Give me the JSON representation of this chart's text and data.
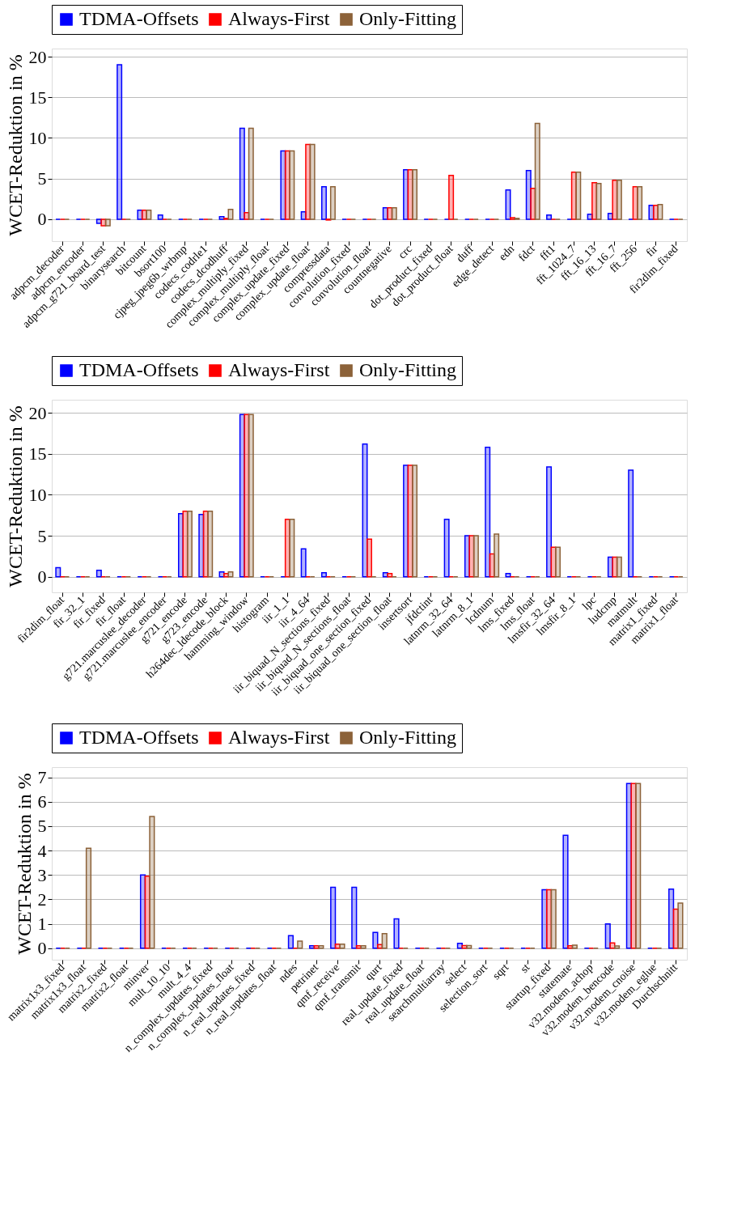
{
  "chart_data": [
    {
      "type": "bar",
      "ylabel": "WCET-Reduktion in %",
      "legend": "top",
      "grid": "y",
      "ylim": [
        -2.7,
        21
      ],
      "yticks": [
        0,
        5,
        10,
        15,
        20
      ],
      "categories": [
        "adpcm_decoder",
        "adpcm_encoder",
        "adpcm_g721_board_test",
        "binarysearch",
        "bitcount",
        "bsort100",
        "cjpeg_jpeg6b_wrbmp",
        "codecs_codrle1",
        "codecs_dcodhuff",
        "complex_multiply_fixed",
        "complex_multiply_float",
        "complex_update_fixed",
        "complex_update_float",
        "compressdata",
        "convolution_fixed",
        "convolution_float",
        "countnegative",
        "crc",
        "dot_product_fixed",
        "dot_product_float",
        "duff",
        "edge_detect",
        "edn",
        "fdct",
        "fft1",
        "fft_1024_7",
        "fft_16_13",
        "fft_16_7",
        "fft_256",
        "fir",
        "fir2dim_fixed"
      ],
      "series": [
        {
          "name": "TDMA-Offsets",
          "color": "#0000ff",
          "values": [
            0,
            0,
            -0.5,
            19,
            1.1,
            0.5,
            0,
            0,
            0.3,
            11.2,
            0,
            8.4,
            0.9,
            4.0,
            0,
            0,
            1.4,
            6.1,
            0,
            0,
            0,
            0,
            3.6,
            6.0,
            0.5,
            0,
            0.6,
            0.7,
            0,
            1.7,
            0
          ]
        },
        {
          "name": "Always-First",
          "color": "#ff0000",
          "values": [
            0,
            0,
            -0.8,
            0,
            1.1,
            0,
            0,
            0,
            0.1,
            0.8,
            0,
            8.4,
            9.2,
            -0.1,
            0,
            0,
            1.4,
            6.1,
            0,
            5.4,
            0,
            0,
            0.2,
            3.8,
            0,
            5.8,
            4.5,
            4.8,
            4.0,
            1.7,
            0
          ]
        },
        {
          "name": "Only-Fitting",
          "color": "#8c6239",
          "values": [
            0,
            0,
            -0.8,
            0,
            1.1,
            0,
            0,
            0,
            1.2,
            11.2,
            0,
            8.4,
            9.2,
            4.0,
            0,
            0,
            1.4,
            6.1,
            0,
            0,
            0,
            0,
            0.1,
            11.8,
            0,
            5.8,
            4.4,
            4.8,
            4.0,
            1.8,
            0
          ]
        }
      ]
    },
    {
      "type": "bar",
      "ylabel": "WCET-Reduktion in %",
      "legend": "top",
      "grid": "y",
      "ylim": [
        -1.9,
        21.6
      ],
      "yticks": [
        0,
        5,
        10,
        15,
        20
      ],
      "categories": [
        "fir2dim_float",
        "fir_32_1",
        "fir_fixed",
        "fir_float",
        "g721.marcuslee_decoder",
        "g721.marcuslee_encoder",
        "g721_encode",
        "g723_encode",
        "h264dec_ldecode_block",
        "hamming_window",
        "histogram",
        "iir_1_1",
        "iir_4_64",
        "iir_biquad_N_sections_fixed",
        "iir_biquad_N_sections_float",
        "iir_biquad_one_section_fixed",
        "iir_biquad_one_section_float",
        "insertsort",
        "jfdctint",
        "latnrm_32_64",
        "latnrm_8_1",
        "lcdnum",
        "lms_fixed",
        "lms_float",
        "lmsfir_32_64",
        "lmsfir_8_1",
        "lpc",
        "ludcmp",
        "matmult",
        "matrix1_fixed",
        "matrix1_float"
      ],
      "series": [
        {
          "name": "TDMA-Offsets",
          "color": "#0000ff",
          "values": [
            1.1,
            0,
            0.8,
            0,
            0,
            0,
            7.7,
            7.6,
            0.6,
            19.8,
            0,
            0,
            3.4,
            0.5,
            0,
            16.2,
            0.5,
            13.6,
            0,
            7.0,
            5.0,
            15.8,
            0.4,
            0,
            13.4,
            0,
            0,
            2.4,
            13.0,
            0,
            0
          ]
        },
        {
          "name": "Always-First",
          "color": "#ff0000",
          "values": [
            0,
            0,
            0,
            0,
            0,
            0,
            8.0,
            8.0,
            0.4,
            19.8,
            0,
            7.0,
            0,
            0,
            0,
            4.6,
            0.4,
            13.6,
            0,
            0,
            5.0,
            2.8,
            0,
            0,
            3.6,
            0,
            0,
            2.4,
            0,
            0,
            0
          ]
        },
        {
          "name": "Only-Fitting",
          "color": "#8c6239",
          "values": [
            0,
            0,
            0,
            0,
            0,
            0,
            8.0,
            8.0,
            0.6,
            19.8,
            0,
            7.0,
            0,
            0,
            0,
            0,
            0,
            13.6,
            0,
            0,
            5.0,
            5.2,
            0,
            0,
            3.6,
            0,
            0,
            2.4,
            0,
            0,
            0
          ]
        }
      ]
    },
    {
      "type": "bar",
      "ylabel": "WCET-Reduktion in %",
      "legend": "top",
      "grid": "y",
      "ylim": [
        -0.47,
        7.42
      ],
      "yticks": [
        0,
        1,
        2,
        3,
        4,
        5,
        6,
        7
      ],
      "categories": [
        "matrix1x3_fixed",
        "matrix1x3_float",
        "matrix2_fixed",
        "matrix2_float",
        "minver",
        "mult_10_10",
        "mult_4_4",
        "n_complex_updates_fixed",
        "n_complex_updates_float",
        "n_real_updates_fixed",
        "n_real_updates_float",
        "ndes",
        "petrinet",
        "qmf_receive",
        "qmf_transmit",
        "qurt",
        "real_update_fixed",
        "real_update_float",
        "searchmultiarray",
        "select",
        "selection_sort",
        "sqrt",
        "st",
        "startup_fixed",
        "statemate",
        "v32.modem_achop",
        "v32.modem_bencode",
        "v32.modem_cnoise",
        "v32.modem_eglue",
        "Durchschnitt"
      ],
      "series": [
        {
          "name": "TDMA-Offsets",
          "color": "#0000ff",
          "values": [
            0,
            0,
            0,
            0,
            3.0,
            0,
            0,
            0,
            0,
            0,
            0,
            0.52,
            0.1,
            2.5,
            2.5,
            0.65,
            1.2,
            0,
            0,
            0.2,
            0,
            0,
            0,
            2.4,
            4.63,
            0,
            1.0,
            6.75,
            0,
            2.42
          ]
        },
        {
          "name": "Always-First",
          "color": "#ff0000",
          "values": [
            0,
            0,
            0,
            0,
            2.95,
            0,
            0,
            0,
            0,
            0,
            0,
            0,
            0.1,
            0.17,
            0.1,
            0.15,
            0,
            0,
            0,
            0.11,
            0,
            0,
            0,
            2.4,
            0.1,
            0,
            0.22,
            6.75,
            0,
            1.6
          ]
        },
        {
          "name": "Only-Fitting",
          "color": "#8c6239",
          "values": [
            0,
            4.1,
            0,
            0,
            5.4,
            0,
            0,
            0,
            0,
            0,
            0,
            0.29,
            0.1,
            0.17,
            0.1,
            0.6,
            0,
            0,
            0,
            0.11,
            0,
            0,
            0,
            2.4,
            0.13,
            0,
            0.09,
            6.75,
            0,
            1.85
          ]
        }
      ]
    }
  ]
}
